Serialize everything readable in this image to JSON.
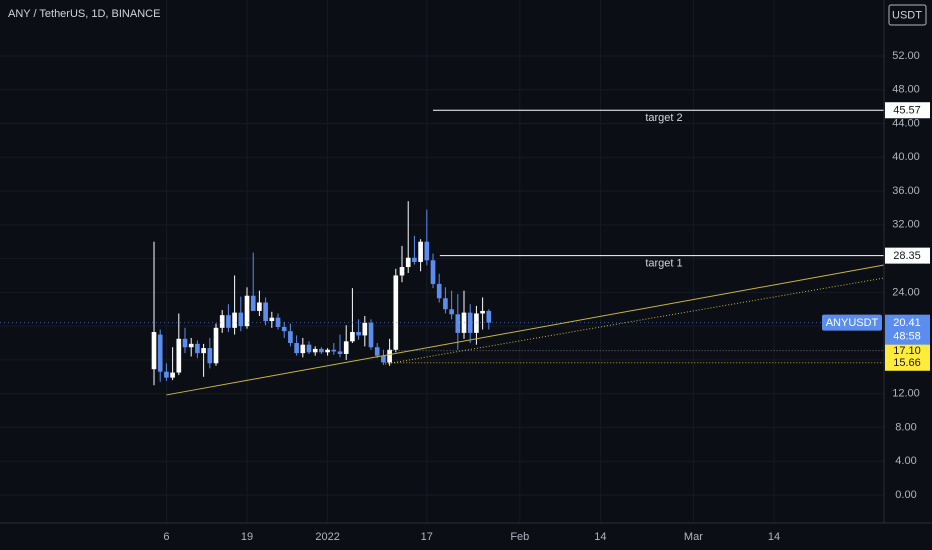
{
  "chart_data": {
    "type": "candlestick",
    "title": "ANY / TetherUS, 1D, BINANCE",
    "currency": "USDT",
    "symbol": "ANYUSDT",
    "countdown": "48:58",
    "last_price": 20.41,
    "open": [
      14.9,
      19.0,
      14.6,
      13.9,
      14.5,
      18.5,
      17.5,
      17.9,
      16.8,
      17.4,
      15.6,
      19.8,
      21.3,
      19.8,
      21.6,
      20.0,
      23.6,
      21.8,
      22.8,
      20.6,
      21.0,
      19.9,
      19.4,
      18.0,
      16.8,
      17.8,
      16.9,
      17.3,
      16.9,
      17.2,
      17.0,
      16.7,
      18.2,
      19.3,
      18.9,
      20.4,
      17.5,
      16.5,
      15.7,
      17.2,
      26.0,
      27.0,
      28.1,
      27.6,
      30.0,
      27.8,
      25.0,
      23.3,
      22.0,
      21.4,
      19.2,
      21.6,
      19.2,
      21.5,
      21.8
    ],
    "high": [
      30.0,
      19.6,
      15.6,
      17.5,
      21.5,
      19.8,
      18.6,
      18.3,
      17.9,
      18.6,
      20.3,
      21.9,
      22.6,
      26.0,
      23.5,
      24.6,
      28.7,
      24.2,
      23.4,
      21.7,
      21.5,
      20.5,
      20.3,
      18.9,
      18.6,
      18.2,
      17.6,
      17.5,
      17.4,
      18.0,
      19.0,
      20.1,
      24.5,
      20.8,
      21.2,
      20.8,
      18.0,
      17.2,
      18.5,
      26.8,
      29.5,
      34.8,
      30.7,
      30.3,
      33.8,
      28.6,
      26.2,
      24.6,
      24.2,
      23.8,
      24.2,
      22.6,
      22.4,
      23.4,
      22.0
    ],
    "low": [
      13.0,
      13.4,
      13.5,
      13.6,
      14.2,
      16.8,
      16.4,
      16.2,
      14.0,
      15.0,
      15.3,
      19.2,
      19.3,
      19.0,
      19.4,
      19.7,
      22.0,
      21.2,
      20.1,
      19.8,
      19.6,
      18.6,
      17.6,
      16.5,
      16.3,
      16.7,
      16.5,
      16.7,
      16.5,
      16.6,
      16.3,
      16.0,
      18.0,
      18.4,
      17.6,
      17.2,
      16.2,
      15.4,
      15.3,
      16.9,
      25.2,
      26.3,
      27.3,
      26.5,
      27.2,
      24.5,
      22.8,
      21.5,
      20.8,
      17.2,
      18.5,
      18.0,
      17.8,
      19.6,
      19.6
    ],
    "close": [
      19.3,
      14.6,
      13.9,
      14.5,
      18.5,
      17.5,
      17.9,
      16.8,
      17.4,
      15.6,
      19.8,
      21.3,
      19.8,
      21.6,
      20.0,
      23.6,
      21.8,
      22.8,
      20.6,
      21.0,
      19.9,
      19.4,
      18.0,
      16.8,
      17.8,
      16.9,
      17.3,
      16.9,
      17.2,
      17.0,
      16.7,
      18.2,
      19.3,
      18.9,
      20.4,
      17.5,
      16.5,
      15.7,
      17.2,
      26.0,
      27.0,
      28.1,
      27.6,
      30.0,
      27.8,
      25.0,
      23.3,
      22.0,
      21.4,
      19.2,
      21.6,
      19.2,
      21.5,
      21.8,
      20.41
    ],
    "up_color": "#ffffff",
    "down_color": "#5b8def",
    "xlim": [
      -24.84,
      117.74
    ],
    "xticks": [
      {
        "value": 2,
        "label": "6"
      },
      {
        "value": 15,
        "label": "19"
      },
      {
        "value": 28,
        "label": "2022"
      },
      {
        "value": 44,
        "label": "17"
      },
      {
        "value": 59,
        "label": "Feb"
      },
      {
        "value": 72,
        "label": "14"
      },
      {
        "value": 87,
        "label": "Mar"
      },
      {
        "value": 100,
        "label": "14"
      }
    ],
    "ylim": [
      -3.32,
      58.63
    ],
    "yticks": [
      {
        "value": 0,
        "label": "0.00"
      },
      {
        "value": 4,
        "label": "4.00"
      },
      {
        "value": 8,
        "label": "8.00"
      },
      {
        "value": 12,
        "label": "12.00"
      },
      {
        "value": 16,
        "label": "16.00"
      },
      {
        "value": 20,
        "label": "20.00"
      },
      {
        "value": 24,
        "label": "24.00"
      },
      {
        "value": 28,
        "label": "28.00"
      },
      {
        "value": 32,
        "label": "32.00"
      },
      {
        "value": 36,
        "label": "36.00"
      },
      {
        "value": 40,
        "label": "40.00"
      },
      {
        "value": 44,
        "label": "44.00"
      },
      {
        "value": 48,
        "label": "48.00"
      },
      {
        "value": 52,
        "label": "52.00"
      }
    ],
    "grid": true,
    "targets": [
      {
        "name": "target 2",
        "value": 45.57,
        "start": 45
      },
      {
        "name": "target 1",
        "value": 28.35,
        "start": 46.1
      }
    ],
    "levels": [
      {
        "value": 17.1,
        "label": "17.10",
        "start": 38,
        "color": "#ffeb3b"
      },
      {
        "value": 15.66,
        "start": 37.3,
        "color": "#ffeb3b"
      }
    ],
    "trendlines": [
      {
        "style": "solid",
        "color": "#c8b838",
        "x": [
          2,
          117.74
        ],
        "values": [
          11.85,
          27.24
        ]
      },
      {
        "style": "dotted",
        "color": "#c8b838",
        "x": [
          37.3,
          117.74
        ],
        "values": [
          15.5,
          25.7
        ]
      }
    ]
  }
}
